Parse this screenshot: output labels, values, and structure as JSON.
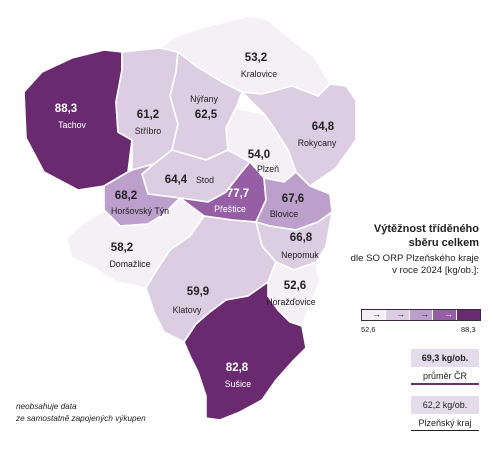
{
  "legend": {
    "title_line1": "Výtěžnost tříděného",
    "title_line2": "sběru celkem",
    "sub_line1": "dle SO ORP Plzeňského kraje",
    "sub_line2": "v roce 2024 [kg/ob.]:",
    "scale_min": "52,6",
    "scale_max": "88,3",
    "arrow_glyph": "→",
    "scale_colors": [
      "#f4f0f6",
      "#dccde3",
      "#bd9fcb",
      "#965fa5",
      "#6a2a6f"
    ]
  },
  "summary": {
    "cr_value": "69,3 kg/ob.",
    "cr_label": "průměr ČR",
    "kraj_value": "62,2 kg/ob.",
    "kraj_label": "Plzeňský kraj"
  },
  "footnote": {
    "line1": "neobsahuje data",
    "line2": "ze samostatně zapojených výkupen"
  },
  "regions": [
    {
      "name": "Tachov",
      "value": "88,3"
    },
    {
      "name": "Stříbro",
      "value": "61,2"
    },
    {
      "name": "Nýřany",
      "value": "62,5"
    },
    {
      "name": "Kralovice",
      "value": "53,2"
    },
    {
      "name": "Rokycany",
      "value": "64,8"
    },
    {
      "name": "Plzeň",
      "value": "54,0"
    },
    {
      "name": "Stod",
      "value": "64,4"
    },
    {
      "name": "Horšovský Týn",
      "value": "68,2"
    },
    {
      "name": "Přeštice",
      "value": "77,7"
    },
    {
      "name": "Blovice",
      "value": "67,6"
    },
    {
      "name": "Nepomuk",
      "value": "66,8"
    },
    {
      "name": "Domažlice",
      "value": "58,2"
    },
    {
      "name": "Klatovy",
      "value": "59,9"
    },
    {
      "name": "Horažďovice",
      "value": "52,6"
    },
    {
      "name": "Sušice",
      "value": "82,8"
    }
  ]
}
